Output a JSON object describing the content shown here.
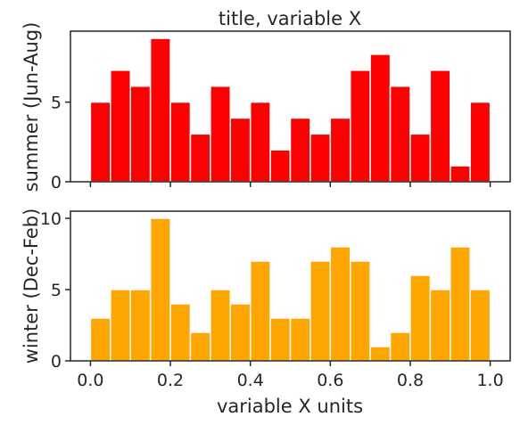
{
  "chart_data": [
    {
      "type": "bar",
      "title": "title, variable X",
      "xlabel": "",
      "ylabel": "summer (Jun-Aug)",
      "color": "#ff0000",
      "bin_edges": [
        0.0,
        0.05,
        0.1,
        0.15,
        0.2,
        0.25,
        0.3,
        0.35,
        0.4,
        0.45,
        0.5,
        0.55,
        0.6,
        0.65,
        0.7,
        0.75,
        0.8,
        0.85,
        0.9,
        0.95,
        1.0
      ],
      "values": [
        5,
        7,
        6,
        9,
        5,
        3,
        6,
        4,
        5,
        2,
        4,
        3,
        4,
        7,
        8,
        6,
        3,
        7,
        1,
        5
      ],
      "xlim": [
        -0.05,
        1.05
      ],
      "ylim": [
        0,
        9.45
      ],
      "yticks": [
        "0",
        "5"
      ],
      "xticks_labels_shown": false
    },
    {
      "type": "bar",
      "title": "",
      "xlabel": "variable X units",
      "ylabel": "winter (Dec-Feb)",
      "color": "#ffa500",
      "bin_edges": [
        0.0,
        0.05,
        0.1,
        0.15,
        0.2,
        0.25,
        0.3,
        0.35,
        0.4,
        0.45,
        0.5,
        0.55,
        0.6,
        0.65,
        0.7,
        0.75,
        0.8,
        0.85,
        0.9,
        0.95,
        1.0
      ],
      "values": [
        3,
        5,
        5,
        10,
        4,
        2,
        5,
        4,
        7,
        3,
        3,
        7,
        8,
        7,
        1,
        2,
        6,
        5,
        8,
        5
      ],
      "xlim": [
        -0.05,
        1.05
      ],
      "ylim": [
        0,
        10.5
      ],
      "yticks": [
        "0",
        "5",
        "10"
      ],
      "xticks": [
        "0.0",
        "0.2",
        "0.4",
        "0.6",
        "0.8",
        "1.0"
      ]
    }
  ]
}
